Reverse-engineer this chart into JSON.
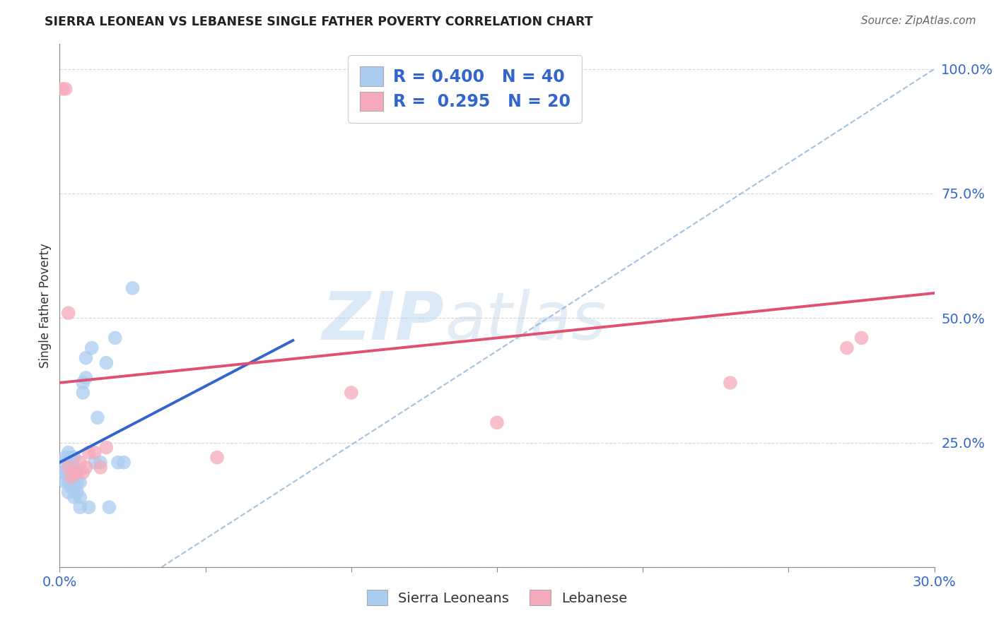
{
  "title": "SIERRA LEONEAN VS LEBANESE SINGLE FATHER POVERTY CORRELATION CHART",
  "source": "Source: ZipAtlas.com",
  "ylabel_label": "Single Father Poverty",
  "x_min": 0.0,
  "x_max": 0.3,
  "y_min": 0.0,
  "y_max": 1.05,
  "x_ticks": [
    0.0,
    0.05,
    0.1,
    0.15,
    0.2,
    0.25,
    0.3
  ],
  "x_tick_labels": [
    "0.0%",
    "",
    "",
    "",
    "",
    "",
    "30.0%"
  ],
  "y_ticks": [
    0.0,
    0.25,
    0.5,
    0.75,
    1.0
  ],
  "y_tick_labels": [
    "",
    "25.0%",
    "50.0%",
    "75.0%",
    "100.0%"
  ],
  "grid_color": "#cccccc",
  "background_color": "#ffffff",
  "sierra_color": "#aaccf0",
  "lebanese_color": "#f5aabb",
  "sierra_line_color": "#3366cc",
  "lebanese_line_color": "#e05070",
  "dashed_line_color": "#99bbdd",
  "legend_R_sierra": "0.400",
  "legend_N_sierra": "40",
  "legend_R_lebanese": "0.295",
  "legend_N_lebanese": "20",
  "watermark_zip": "ZIP",
  "watermark_atlas": "atlas",
  "sierra_points_x": [
    0.001,
    0.001,
    0.002,
    0.002,
    0.002,
    0.003,
    0.003,
    0.003,
    0.003,
    0.003,
    0.004,
    0.004,
    0.004,
    0.004,
    0.005,
    0.005,
    0.005,
    0.005,
    0.005,
    0.006,
    0.006,
    0.006,
    0.007,
    0.007,
    0.007,
    0.008,
    0.008,
    0.009,
    0.009,
    0.01,
    0.011,
    0.012,
    0.013,
    0.014,
    0.016,
    0.017,
    0.019,
    0.02,
    0.022,
    0.025
  ],
  "sierra_points_y": [
    0.19,
    0.21,
    0.17,
    0.19,
    0.22,
    0.15,
    0.17,
    0.19,
    0.21,
    0.23,
    0.16,
    0.18,
    0.2,
    0.22,
    0.14,
    0.16,
    0.18,
    0.2,
    0.22,
    0.15,
    0.17,
    0.19,
    0.12,
    0.14,
    0.17,
    0.35,
    0.37,
    0.38,
    0.42,
    0.12,
    0.44,
    0.21,
    0.3,
    0.21,
    0.41,
    0.12,
    0.46,
    0.21,
    0.21,
    0.56
  ],
  "lebanese_points_x": [
    0.001,
    0.002,
    0.003,
    0.003,
    0.004,
    0.005,
    0.006,
    0.007,
    0.008,
    0.009,
    0.01,
    0.012,
    0.014,
    0.016,
    0.054,
    0.1,
    0.15,
    0.23,
    0.27,
    0.275
  ],
  "lebanese_points_y": [
    0.96,
    0.96,
    0.51,
    0.2,
    0.18,
    0.19,
    0.19,
    0.21,
    0.19,
    0.2,
    0.23,
    0.23,
    0.2,
    0.24,
    0.22,
    0.35,
    0.29,
    0.37,
    0.44,
    0.46
  ],
  "blue_line_x0": 0.0,
  "blue_line_x1": 0.08,
  "blue_line_y0": 0.21,
  "blue_line_y1": 0.455,
  "pink_line_x0": 0.0,
  "pink_line_x1": 0.3,
  "pink_line_y0": 0.37,
  "pink_line_y1": 0.55,
  "dash_line_x0": 0.035,
  "dash_line_x1": 0.3,
  "dash_line_y0": 0.0,
  "dash_line_y1": 1.0
}
